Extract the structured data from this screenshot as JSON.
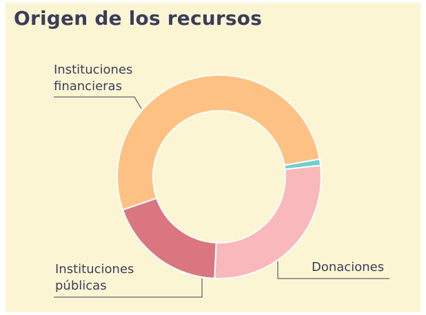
{
  "chart_data": {
    "type": "donut",
    "title": "Origen de los recursos",
    "categories": [
      "Instituciones financieras",
      null,
      "Donaciones",
      "Instituciones públicas"
    ],
    "values": [
      52.5,
      1,
      27.5,
      19
    ],
    "colors": [
      "#fdc283",
      "#6fcfcf",
      "#f9b8bc",
      "#d97680"
    ]
  }
}
